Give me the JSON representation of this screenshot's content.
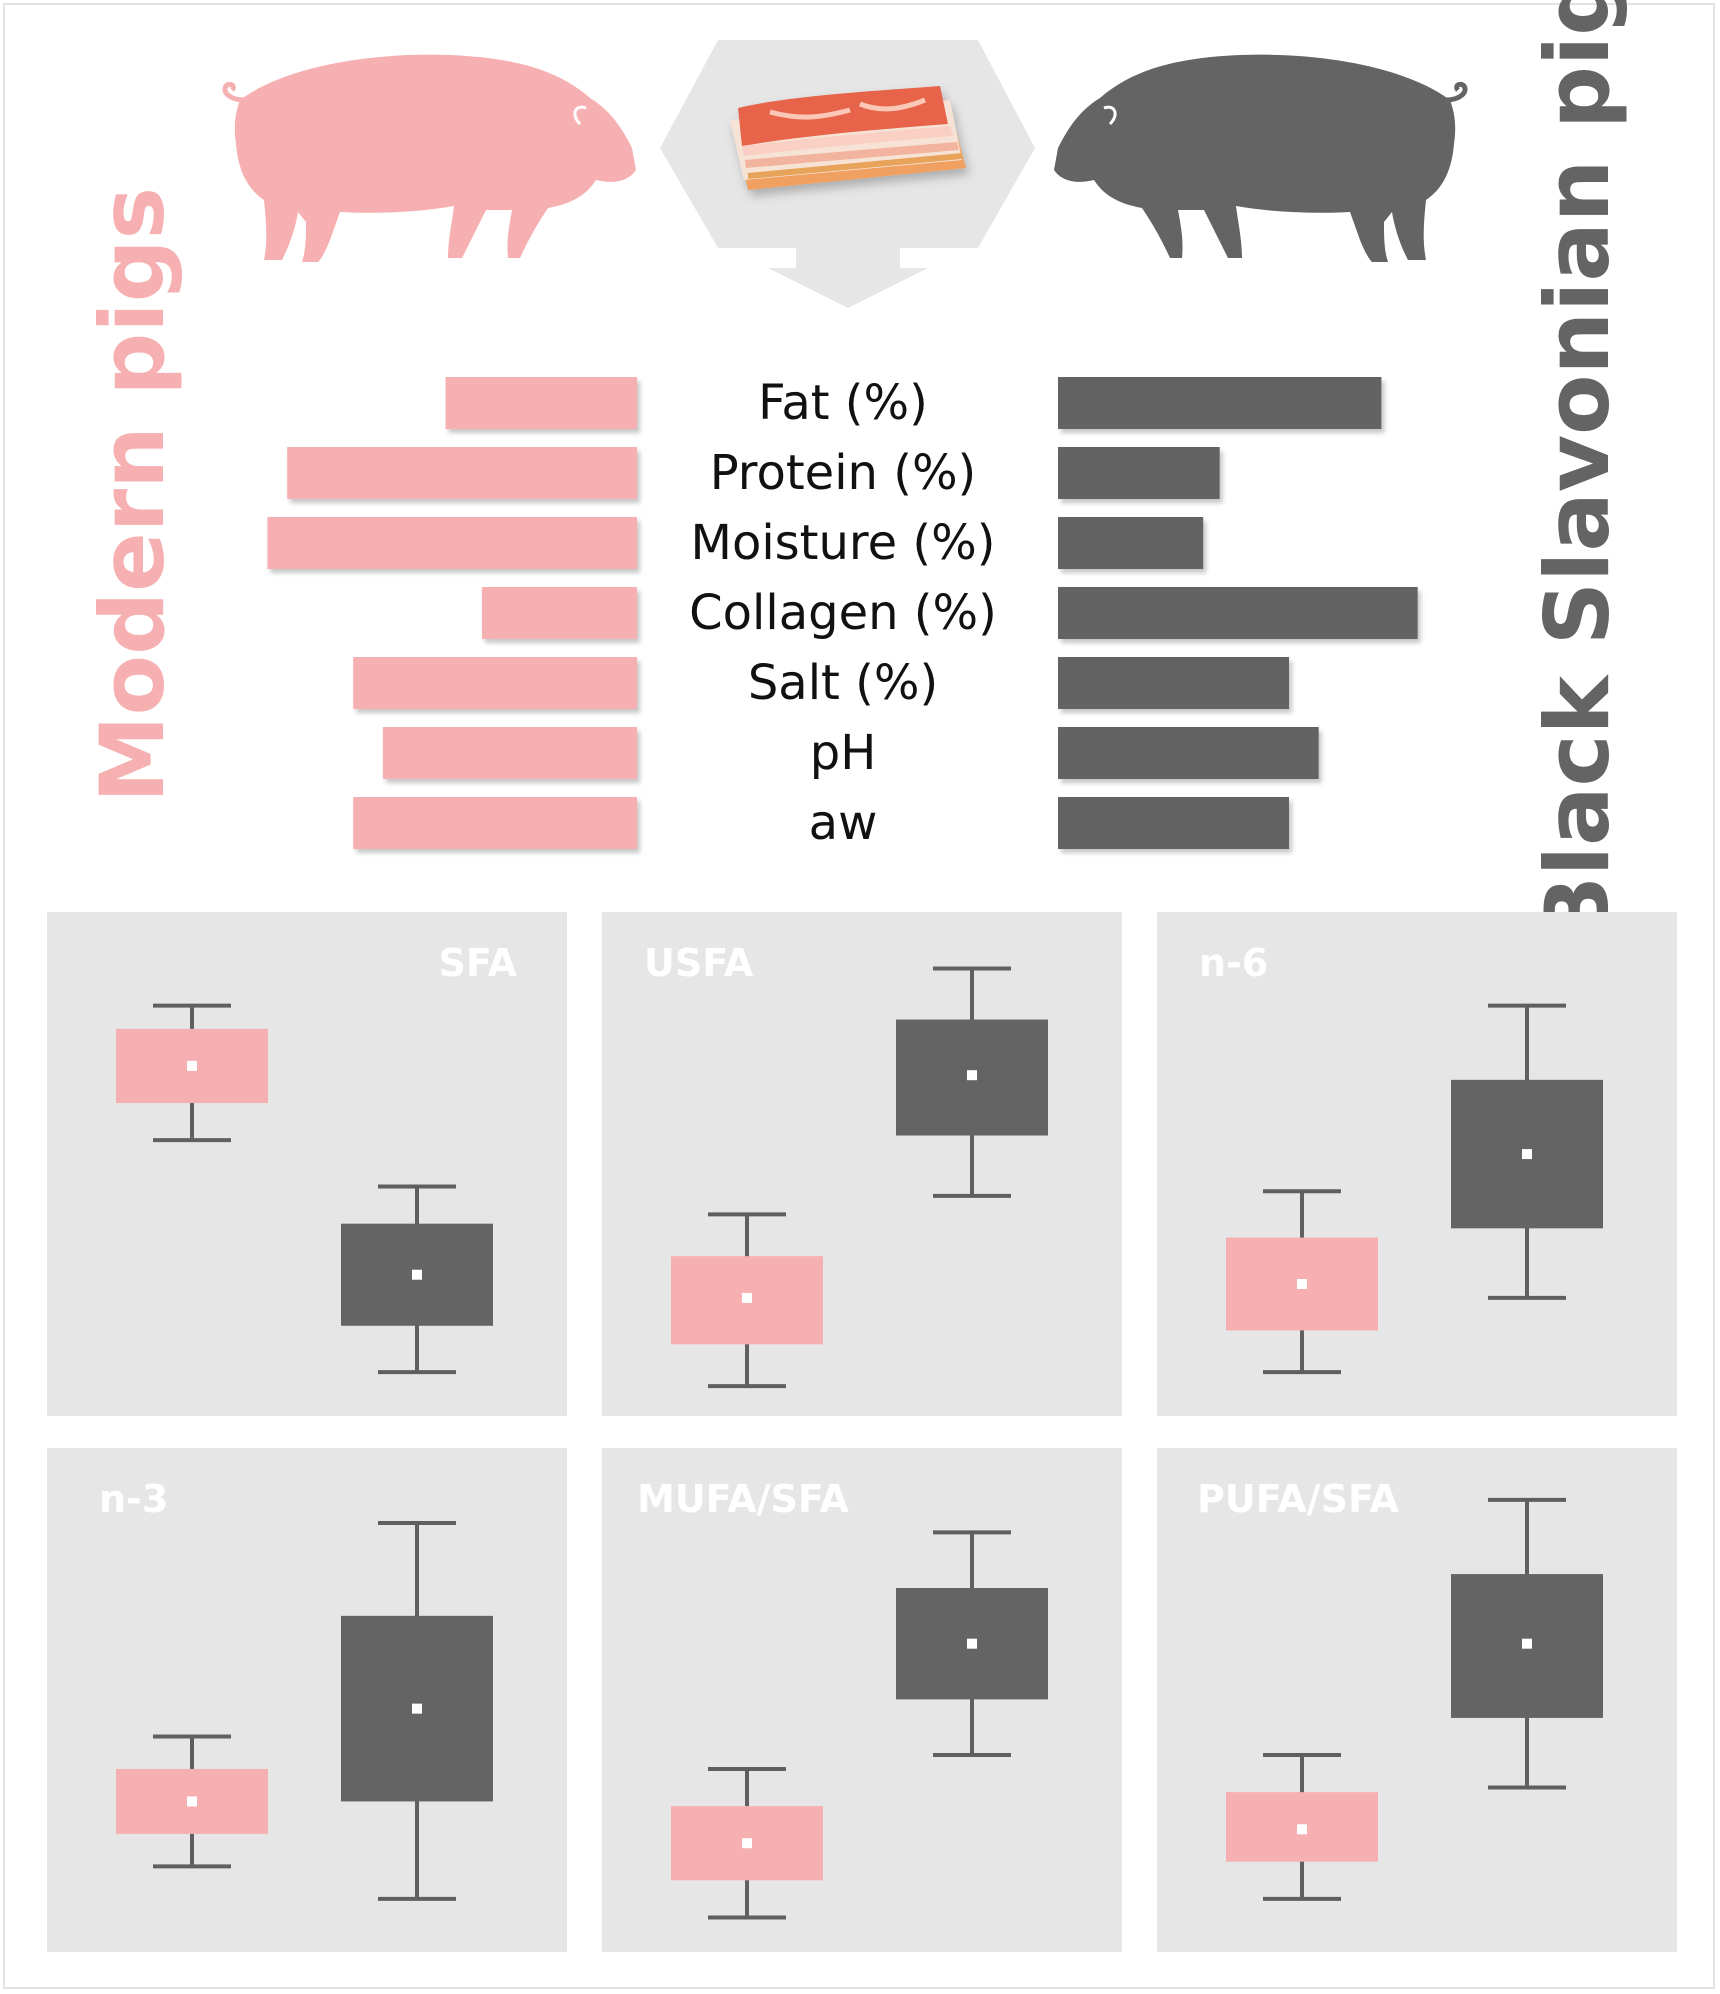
{
  "colors": {
    "modern": "#f7b0b1",
    "black_slavonian": "#646464",
    "panel": "#e6e6e6",
    "arrow": "#e6e6e6"
  },
  "labels": {
    "modern": "Modern pigs",
    "black_slavonian": "Black Slavonian pig"
  },
  "icons": [
    "pig-icon",
    "meat-icon",
    "arrow-icon"
  ],
  "chart_data": [
    {
      "type": "bar",
      "orientation": "horizontal-butterfly",
      "categories": [
        "Fat (%)",
        "Protein (%)",
        "Moisture (%)",
        "Collagen (%)",
        "Salt (%)",
        "pH",
        "aw"
      ],
      "series": [
        {
          "name": "Modern pigs",
          "values": [
            5.8,
            10.6,
            11.2,
            4.7,
            8.6,
            7.7,
            8.6
          ]
        },
        {
          "name": "Black Slavonian pig",
          "values": [
            9.8,
            4.9,
            4.4,
            10.9,
            7.0,
            7.9,
            7.0
          ]
        }
      ],
      "value_scale": "relative (no axis printed)"
    },
    {
      "type": "boxplot",
      "panels": [
        {
          "title": "SFA",
          "series": [
            {
              "name": "Modern pigs",
              "whisker_high": 85,
              "q3": 80,
              "median": 72,
              "q1": 64,
              "whisker_low": 56
            },
            {
              "name": "Black Slavonian pig",
              "whisker_high": 46,
              "q3": 38,
              "median": 27,
              "q1": 16,
              "whisker_low": 6
            }
          ]
        },
        {
          "title": "USFA",
          "series": [
            {
              "name": "Modern pigs",
              "whisker_high": 40,
              "q3": 31,
              "median": 22,
              "q1": 12,
              "whisker_low": 3
            },
            {
              "name": "Black Slavonian pig",
              "whisker_high": 93,
              "q3": 82,
              "median": 70,
              "q1": 57,
              "whisker_low": 44
            }
          ]
        },
        {
          "title": "n-6",
          "series": [
            {
              "name": "Modern pigs",
              "whisker_high": 45,
              "q3": 35,
              "median": 25,
              "q1": 15,
              "whisker_low": 6
            },
            {
              "name": "Black Slavonian pig",
              "whisker_high": 85,
              "q3": 69,
              "median": 53,
              "q1": 37,
              "whisker_low": 22
            }
          ]
        },
        {
          "title": "n-3",
          "series": [
            {
              "name": "Modern pigs",
              "whisker_high": 43,
              "q3": 36,
              "median": 29,
              "q1": 22,
              "whisker_low": 15
            },
            {
              "name": "Black Slavonian pig",
              "whisker_high": 89,
              "q3": 69,
              "median": 49,
              "q1": 29,
              "whisker_low": 8
            }
          ]
        },
        {
          "title": "MUFA/SFA",
          "series": [
            {
              "name": "Modern pigs",
              "whisker_high": 36,
              "q3": 28,
              "median": 20,
              "q1": 12,
              "whisker_low": 4
            },
            {
              "name": "Black Slavonian pig",
              "whisker_high": 87,
              "q3": 75,
              "median": 63,
              "q1": 51,
              "whisker_low": 39
            }
          ]
        },
        {
          "title": "PUFA/SFA",
          "series": [
            {
              "name": "Modern pigs",
              "whisker_high": 39,
              "q3": 31,
              "median": 23,
              "q1": 16,
              "whisker_low": 8
            },
            {
              "name": "Black Slavonian pig",
              "whisker_high": 94,
              "q3": 78,
              "median": 63,
              "q1": 47,
              "whisker_low": 32
            }
          ]
        }
      ]
    }
  ]
}
